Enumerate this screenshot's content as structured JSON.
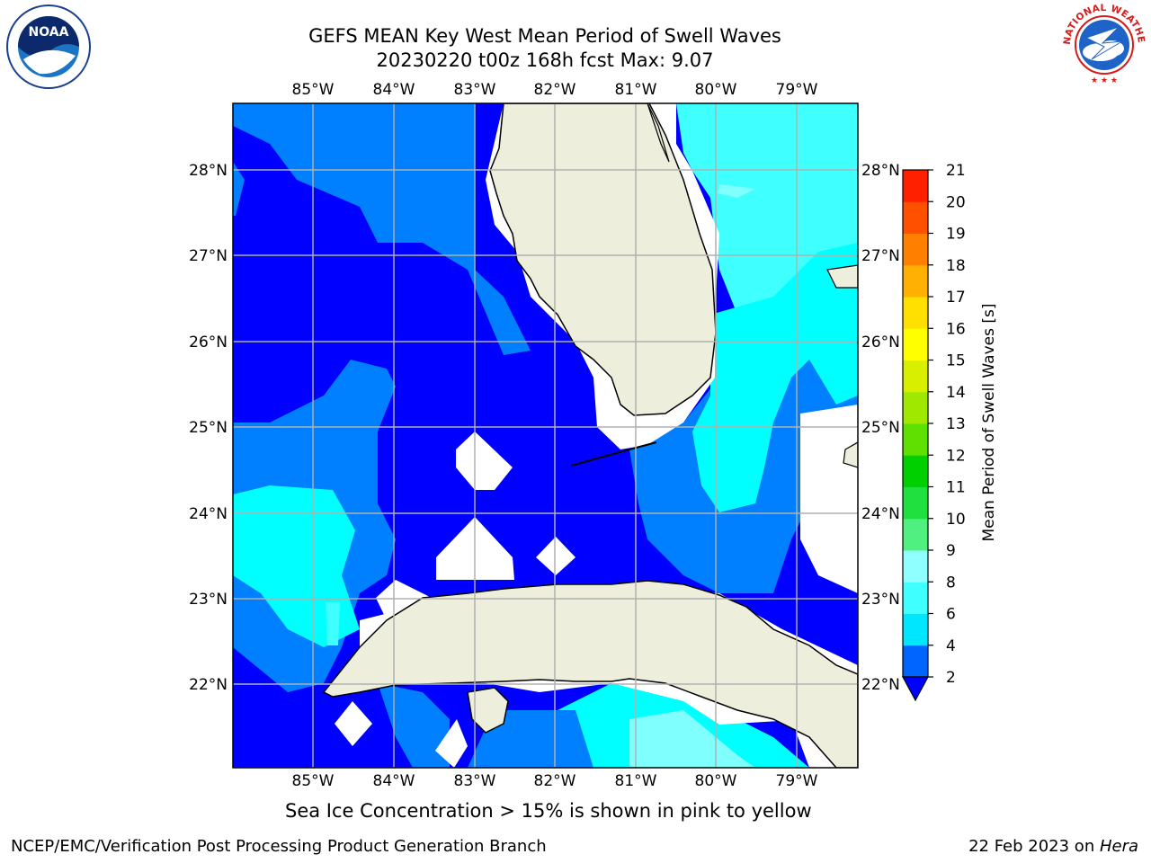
{
  "header": {
    "title_line1": "GEFS MEAN Key West Mean Period of Swell Waves",
    "title_line2": "20230220 t00z 168h fcst   Max: 9.07"
  },
  "logos": {
    "left": {
      "text": "NOAA",
      "icon": "noaa-logo-icon"
    },
    "right": {
      "text": "NATIONAL WEATHER SERVICE",
      "icon": "nws-logo-icon"
    }
  },
  "map": {
    "lon_labels": [
      "85°W",
      "84°W",
      "83°W",
      "82°W",
      "81°W",
      "80°W",
      "79°W"
    ],
    "lat_labels": [
      "28°N",
      "27°N",
      "26°N",
      "25°N",
      "24°N",
      "23°N",
      "22°N"
    ],
    "colors": {
      "deep_blue": "#0000FF",
      "mid_blue": "#0080FF",
      "cyan": "#00FFFF",
      "light_cyan": "#40FFFF",
      "pale_cyan": "#80FFFF",
      "land": "#EEEEDD",
      "missing": "#FFFFFF",
      "grid": "#B0B0B0"
    }
  },
  "colorbar": {
    "label": "Mean Period of Swell Waves [s]",
    "ticks": [
      "2",
      "4",
      "6",
      "8",
      "9",
      "10",
      "11",
      "12",
      "13",
      "14",
      "15",
      "16",
      "17",
      "18",
      "19",
      "20",
      "21"
    ],
    "colors": [
      "#0064FF",
      "#00E6FF",
      "#40FFFF",
      "#90FFFF",
      "#50F080",
      "#20E040",
      "#00D000",
      "#60E000",
      "#A0E800",
      "#D8F000",
      "#FFFF00",
      "#FFE000",
      "#FFB000",
      "#FF8000",
      "#FF5000",
      "#FF2000"
    ],
    "under_color": "#0000FF"
  },
  "footer": {
    "note": "Sea Ice Concentration > 15% is shown in pink to yellow",
    "left": "NCEP/EMC/Verification Post Processing Product Generation Branch",
    "right_date": "22 Feb 2023 on ",
    "right_host": "Hera"
  }
}
